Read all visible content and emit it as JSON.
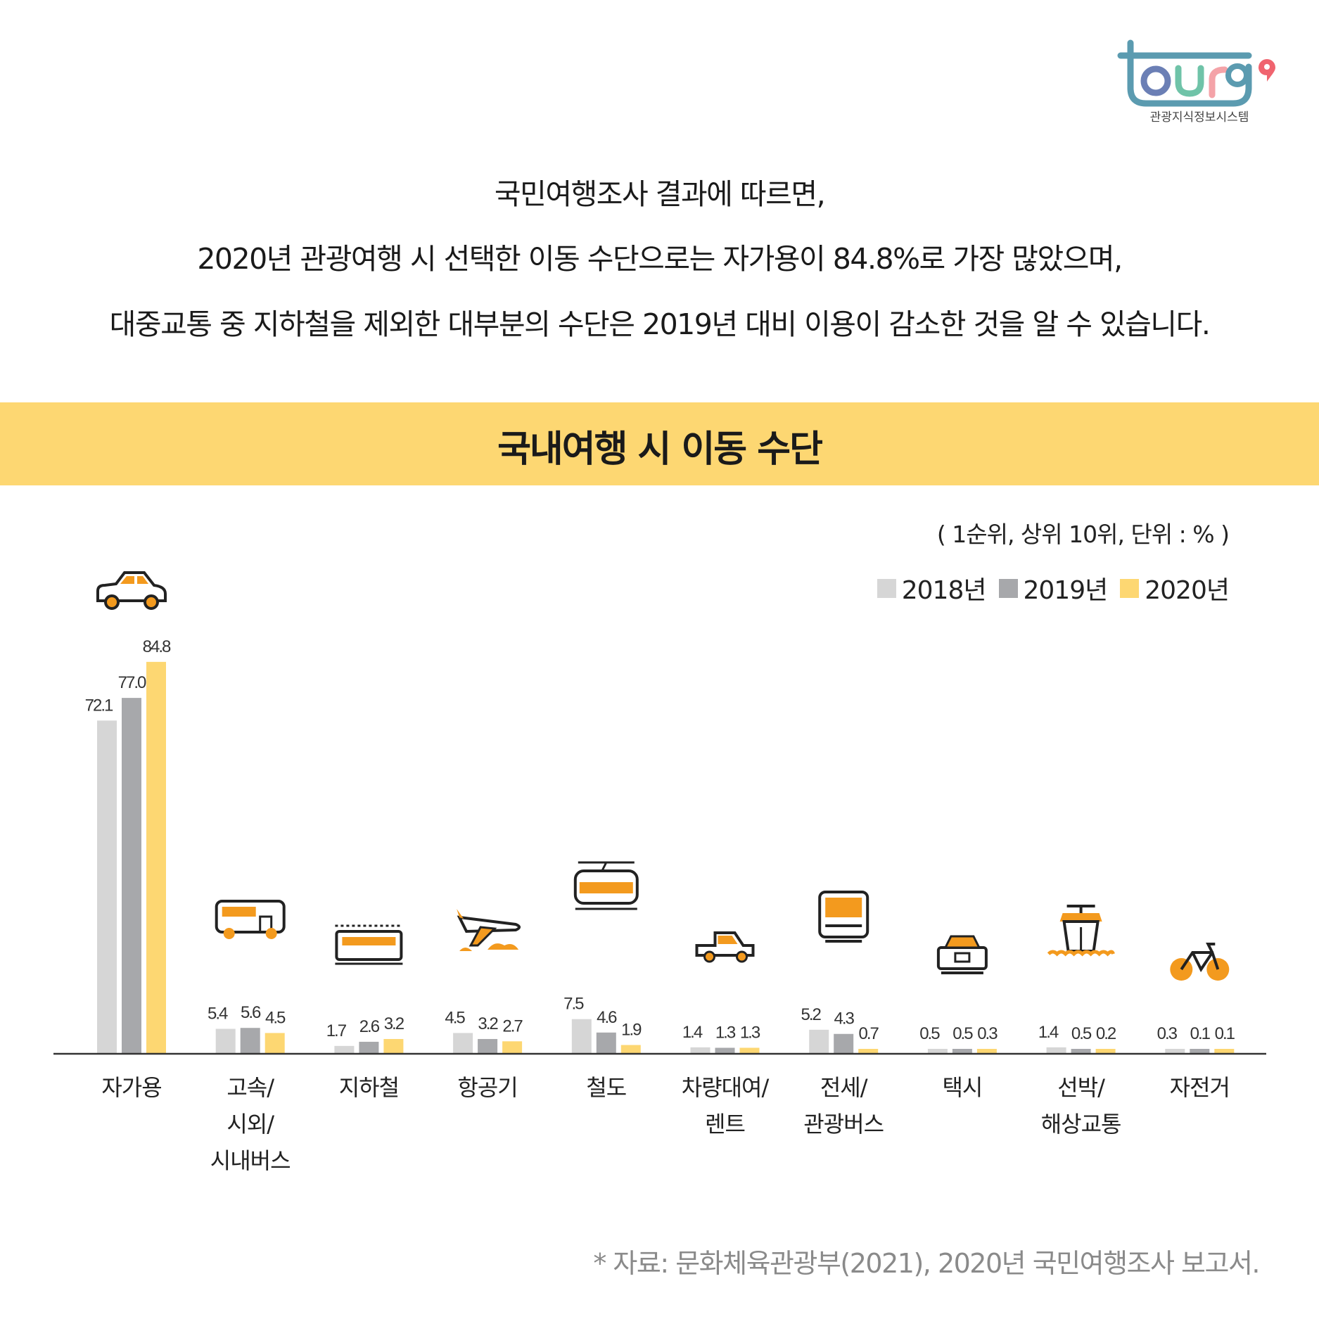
{
  "logo": {
    "text": "tourg",
    "subtitle": "관광지식정보시스템",
    "colors": [
      "#5b9bb0",
      "#6b7fb5",
      "#6fc3a8",
      "#f4a3a8",
      "#f0646f"
    ]
  },
  "intro": [
    "국민여행조사 결과에 따르면,",
    "2020년 관광여행 시 선택한 이동 수단으로는 자가용이 84.8%로 가장 많았으며,",
    "대중교통 중 지하철을 제외한 대부분의 수단은 2019년 대비 이용이 감소한 것을 알 수 있습니다."
  ],
  "band_color": "#fdd772",
  "source": "* 자료: 문화체육관광부(2021), 2020년 국민여행조사 보고서.",
  "chart_data": {
    "type": "bar",
    "title": "국내여행 시 이동 수단",
    "subtitle": "( 1순위, 상위 10위, 단위 : % )",
    "legend_placement": "top-right",
    "grid": false,
    "ylim": [
      0,
      85
    ],
    "categories": [
      "자가용",
      "고속/\n시외/\n시내버스",
      "지하철",
      "항공기",
      "철도",
      "차량대여/\n렌트",
      "전세/\n관광버스",
      "택시",
      "선박/\n해상교통",
      "자전거"
    ],
    "icons": [
      "car-icon",
      "bus-icon",
      "subway-icon",
      "airplane-icon",
      "train-icon",
      "rental-car-icon",
      "tour-bus-icon",
      "taxi-icon",
      "ship-icon",
      "bicycle-icon"
    ],
    "icon_color": "#f39a1e",
    "series": [
      {
        "name": "2018년",
        "color": "#d6d6d6",
        "values": [
          72.1,
          5.4,
          1.7,
          4.5,
          7.5,
          1.4,
          5.2,
          0.5,
          1.4,
          0.3
        ],
        "labels": [
          "72.1",
          "5.4",
          "1.7",
          "4.5",
          "7.5",
          "1.4",
          "5.2",
          "0.5",
          "1.4",
          "0.3"
        ]
      },
      {
        "name": "2019년",
        "color": "#a7a8ab",
        "values": [
          77.0,
          5.6,
          2.6,
          3.2,
          4.6,
          1.3,
          4.3,
          0.5,
          0.5,
          0.1
        ],
        "labels": [
          "77.0",
          "5.6",
          "2.6",
          "3.2",
          "4.6",
          "1.3",
          "4.3",
          "0.5",
          "0.5",
          "0.1"
        ]
      },
      {
        "name": "2020년",
        "color": "#fdd772",
        "values": [
          84.8,
          4.5,
          3.2,
          2.7,
          1.9,
          1.3,
          0.7,
          0.3,
          0.2,
          0.1
        ],
        "labels": [
          "84.8",
          "4.5",
          "3.2",
          "2.7",
          "1.9",
          "1.3",
          "0.7",
          "0.3",
          "0.2",
          "0.1"
        ]
      }
    ]
  }
}
